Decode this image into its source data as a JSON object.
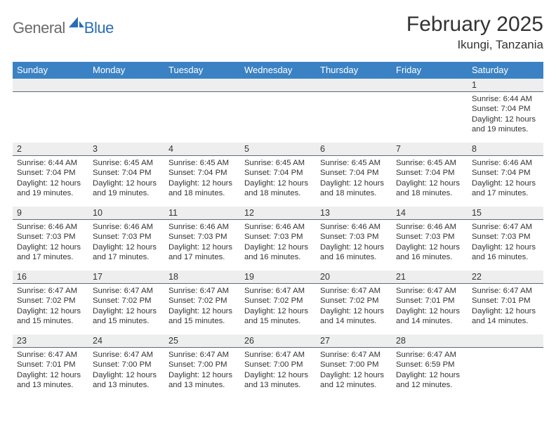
{
  "logo": {
    "general": "General",
    "blue": "Blue"
  },
  "title": "February 2025",
  "location": "Ikungi, Tanzania",
  "colors": {
    "header_bg": "#3b82c4",
    "header_text": "#ffffff",
    "daynum_bg": "#eeeeee",
    "divider": "#5a6b7a",
    "text": "#333333",
    "logo_gray": "#6a6a6a",
    "logo_blue": "#2a6db8"
  },
  "weekdays": [
    "Sunday",
    "Monday",
    "Tuesday",
    "Wednesday",
    "Thursday",
    "Friday",
    "Saturday"
  ],
  "weeks": [
    [
      null,
      null,
      null,
      null,
      null,
      null,
      {
        "n": "1",
        "sr": "6:44 AM",
        "ss": "7:04 PM",
        "dl": "12 hours and 19 minutes."
      }
    ],
    [
      {
        "n": "2",
        "sr": "6:44 AM",
        "ss": "7:04 PM",
        "dl": "12 hours and 19 minutes."
      },
      {
        "n": "3",
        "sr": "6:45 AM",
        "ss": "7:04 PM",
        "dl": "12 hours and 19 minutes."
      },
      {
        "n": "4",
        "sr": "6:45 AM",
        "ss": "7:04 PM",
        "dl": "12 hours and 18 minutes."
      },
      {
        "n": "5",
        "sr": "6:45 AM",
        "ss": "7:04 PM",
        "dl": "12 hours and 18 minutes."
      },
      {
        "n": "6",
        "sr": "6:45 AM",
        "ss": "7:04 PM",
        "dl": "12 hours and 18 minutes."
      },
      {
        "n": "7",
        "sr": "6:45 AM",
        "ss": "7:04 PM",
        "dl": "12 hours and 18 minutes."
      },
      {
        "n": "8",
        "sr": "6:46 AM",
        "ss": "7:04 PM",
        "dl": "12 hours and 17 minutes."
      }
    ],
    [
      {
        "n": "9",
        "sr": "6:46 AM",
        "ss": "7:03 PM",
        "dl": "12 hours and 17 minutes."
      },
      {
        "n": "10",
        "sr": "6:46 AM",
        "ss": "7:03 PM",
        "dl": "12 hours and 17 minutes."
      },
      {
        "n": "11",
        "sr": "6:46 AM",
        "ss": "7:03 PM",
        "dl": "12 hours and 17 minutes."
      },
      {
        "n": "12",
        "sr": "6:46 AM",
        "ss": "7:03 PM",
        "dl": "12 hours and 16 minutes."
      },
      {
        "n": "13",
        "sr": "6:46 AM",
        "ss": "7:03 PM",
        "dl": "12 hours and 16 minutes."
      },
      {
        "n": "14",
        "sr": "6:46 AM",
        "ss": "7:03 PM",
        "dl": "12 hours and 16 minutes."
      },
      {
        "n": "15",
        "sr": "6:47 AM",
        "ss": "7:03 PM",
        "dl": "12 hours and 16 minutes."
      }
    ],
    [
      {
        "n": "16",
        "sr": "6:47 AM",
        "ss": "7:02 PM",
        "dl": "12 hours and 15 minutes."
      },
      {
        "n": "17",
        "sr": "6:47 AM",
        "ss": "7:02 PM",
        "dl": "12 hours and 15 minutes."
      },
      {
        "n": "18",
        "sr": "6:47 AM",
        "ss": "7:02 PM",
        "dl": "12 hours and 15 minutes."
      },
      {
        "n": "19",
        "sr": "6:47 AM",
        "ss": "7:02 PM",
        "dl": "12 hours and 15 minutes."
      },
      {
        "n": "20",
        "sr": "6:47 AM",
        "ss": "7:02 PM",
        "dl": "12 hours and 14 minutes."
      },
      {
        "n": "21",
        "sr": "6:47 AM",
        "ss": "7:01 PM",
        "dl": "12 hours and 14 minutes."
      },
      {
        "n": "22",
        "sr": "6:47 AM",
        "ss": "7:01 PM",
        "dl": "12 hours and 14 minutes."
      }
    ],
    [
      {
        "n": "23",
        "sr": "6:47 AM",
        "ss": "7:01 PM",
        "dl": "12 hours and 13 minutes."
      },
      {
        "n": "24",
        "sr": "6:47 AM",
        "ss": "7:00 PM",
        "dl": "12 hours and 13 minutes."
      },
      {
        "n": "25",
        "sr": "6:47 AM",
        "ss": "7:00 PM",
        "dl": "12 hours and 13 minutes."
      },
      {
        "n": "26",
        "sr": "6:47 AM",
        "ss": "7:00 PM",
        "dl": "12 hours and 13 minutes."
      },
      {
        "n": "27",
        "sr": "6:47 AM",
        "ss": "7:00 PM",
        "dl": "12 hours and 12 minutes."
      },
      {
        "n": "28",
        "sr": "6:47 AM",
        "ss": "6:59 PM",
        "dl": "12 hours and 12 minutes."
      },
      null
    ]
  ],
  "labels": {
    "sunrise": "Sunrise: ",
    "sunset": "Sunset: ",
    "daylight": "Daylight: "
  }
}
